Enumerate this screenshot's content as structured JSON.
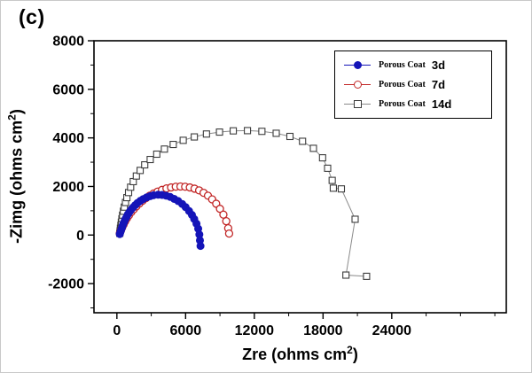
{
  "panel_label": "(c)",
  "chart_data": {
    "type": "scatter",
    "subtype": "nyquist-impedance-plot",
    "title": "",
    "xlabel": {
      "pre": "Zre (ohms cm",
      "sup": "2",
      "post": ")"
    },
    "ylabel": {
      "pre": "-Zimg (ohms cm",
      "sup": "2",
      "post": ")"
    },
    "xlim": [
      -2000,
      34000
    ],
    "ylim": [
      -3200,
      8000
    ],
    "x_ticks": [
      0,
      6000,
      12000,
      18000,
      24000
    ],
    "y_ticks": [
      -2000,
      0,
      2000,
      4000,
      6000,
      8000
    ],
    "x_minor_step": 3000,
    "y_minor_step": 1000,
    "grid": false,
    "legend_position": "top-right",
    "series": [
      {
        "name": "Porous Coat 3d",
        "legend_prefix": "Porous Coat",
        "legend_suffix": "3d",
        "marker": "filled-circle",
        "color": "#1414b8",
        "line_color": "#1414b8",
        "points": [
          [
            250,
            40
          ],
          [
            300,
            110
          ],
          [
            350,
            180
          ],
          [
            400,
            250
          ],
          [
            460,
            330
          ],
          [
            520,
            410
          ],
          [
            590,
            490
          ],
          [
            670,
            580
          ],
          [
            760,
            670
          ],
          [
            860,
            760
          ],
          [
            970,
            860
          ],
          [
            1100,
            950
          ],
          [
            1250,
            1050
          ],
          [
            1420,
            1140
          ],
          [
            1600,
            1230
          ],
          [
            1800,
            1320
          ],
          [
            2050,
            1410
          ],
          [
            2300,
            1480
          ],
          [
            2600,
            1550
          ],
          [
            2900,
            1600
          ],
          [
            3200,
            1640
          ],
          [
            3600,
            1660
          ],
          [
            3950,
            1650
          ],
          [
            4300,
            1620
          ],
          [
            4650,
            1570
          ],
          [
            5000,
            1490
          ],
          [
            5350,
            1400
          ],
          [
            5700,
            1280
          ],
          [
            6000,
            1150
          ],
          [
            6300,
            990
          ],
          [
            6550,
            830
          ],
          [
            6750,
            660
          ],
          [
            6950,
            470
          ],
          [
            7100,
            260
          ],
          [
            7200,
            20
          ],
          [
            7250,
            -220
          ],
          [
            7300,
            -450
          ]
        ]
      },
      {
        "name": "Porous Coat 7d",
        "legend_prefix": "Porous Coat",
        "legend_suffix": "7d",
        "marker": "open-circle",
        "color": "#c22727",
        "line_color": "#c22727",
        "points": [
          [
            250,
            70
          ],
          [
            350,
            190
          ],
          [
            460,
            310
          ],
          [
            580,
            430
          ],
          [
            720,
            560
          ],
          [
            880,
            690
          ],
          [
            1050,
            810
          ],
          [
            1250,
            940
          ],
          [
            1470,
            1060
          ],
          [
            1700,
            1180
          ],
          [
            1960,
            1300
          ],
          [
            2240,
            1410
          ],
          [
            2540,
            1520
          ],
          [
            2860,
            1620
          ],
          [
            3200,
            1710
          ],
          [
            3560,
            1790
          ],
          [
            3940,
            1860
          ],
          [
            4330,
            1920
          ],
          [
            4730,
            1960
          ],
          [
            5140,
            1990
          ],
          [
            5550,
            2000
          ],
          [
            5960,
            1990
          ],
          [
            6370,
            1960
          ],
          [
            6780,
            1910
          ],
          [
            7180,
            1840
          ],
          [
            7570,
            1740
          ],
          [
            7950,
            1620
          ],
          [
            8320,
            1470
          ],
          [
            8670,
            1290
          ],
          [
            9000,
            1080
          ],
          [
            9300,
            840
          ],
          [
            9550,
            570
          ],
          [
            9720,
            280
          ],
          [
            9800,
            60
          ]
        ]
      },
      {
        "name": "Porous Coat 14d",
        "legend_prefix": "Porous Coat",
        "legend_suffix": "14d",
        "marker": "open-square",
        "color": "#3c3c3c",
        "line_color": "#8a8a8a",
        "points": [
          [
            250,
            70
          ],
          [
            280,
            170
          ],
          [
            310,
            280
          ],
          [
            350,
            400
          ],
          [
            390,
            530
          ],
          [
            440,
            670
          ],
          [
            500,
            820
          ],
          [
            570,
            980
          ],
          [
            650,
            1150
          ],
          [
            750,
            1340
          ],
          [
            870,
            1540
          ],
          [
            1020,
            1750
          ],
          [
            1200,
            1970
          ],
          [
            1430,
            2200
          ],
          [
            1700,
            2430
          ],
          [
            2030,
            2660
          ],
          [
            2430,
            2890
          ],
          [
            2910,
            3110
          ],
          [
            3480,
            3330
          ],
          [
            4150,
            3540
          ],
          [
            4920,
            3730
          ],
          [
            5790,
            3900
          ],
          [
            6760,
            4040
          ],
          [
            7820,
            4160
          ],
          [
            8960,
            4240
          ],
          [
            10160,
            4290
          ],
          [
            11400,
            4300
          ],
          [
            12660,
            4270
          ],
          [
            13910,
            4190
          ],
          [
            15110,
            4060
          ],
          [
            16210,
            3860
          ],
          [
            17160,
            3570
          ],
          [
            17960,
            3180
          ],
          [
            18400,
            2750
          ],
          [
            18800,
            2250
          ],
          [
            18900,
            1930
          ],
          [
            19600,
            1900
          ],
          [
            20800,
            650
          ],
          [
            20000,
            -1650
          ],
          [
            21800,
            -1700
          ]
        ]
      }
    ]
  }
}
